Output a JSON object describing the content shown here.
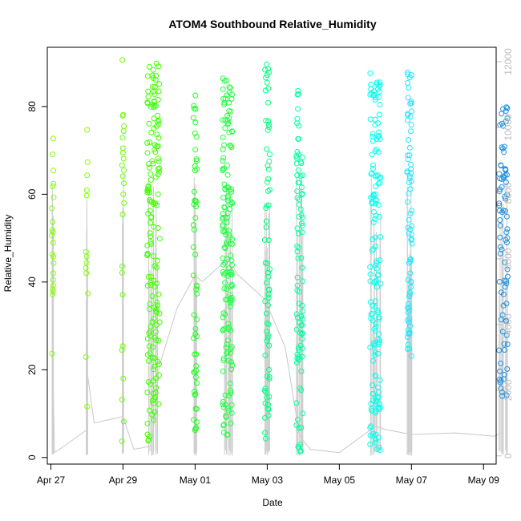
{
  "chart_data": {
    "type": "scatter",
    "title": "ATOM4 Southbound Relative_Humidity",
    "xlabel": "Date",
    "ylabel": "Relative_Humidity",
    "x_unit": "days since Apr 27",
    "xlim": [
      -0.1,
      12.35
    ],
    "ylim": [
      -1.5,
      93.5
    ],
    "y2lim": [
      -250,
      12440
    ],
    "grid": false,
    "legend": "none",
    "x_ticks": [
      {
        "value": 0,
        "label": "Apr 27"
      },
      {
        "value": 2,
        "label": "Apr 29"
      },
      {
        "value": 4,
        "label": "May 01"
      },
      {
        "value": 6,
        "label": "May 03"
      },
      {
        "value": 8,
        "label": "May 05"
      },
      {
        "value": 10,
        "label": "May 07"
      },
      {
        "value": 12,
        "label": "May 09"
      }
    ],
    "y_ticks": [
      0,
      20,
      40,
      60,
      80
    ],
    "y2_ticks": [
      0,
      2000,
      4000,
      6000,
      8000,
      10000,
      12000
    ],
    "clusters": [
      {
        "x": 0.05,
        "color": "#80ff00",
        "points": [
          23.7,
          37.1,
          37.8,
          38.4,
          39.2,
          40.5,
          42.0,
          44.3,
          45.8,
          46.3,
          49.0,
          50.6,
          51.4,
          51.9,
          53.7,
          56.8,
          59.3,
          61.8,
          62.4,
          65.4,
          69.1,
          72.7
        ]
      },
      {
        "x": 1.0,
        "color": "#80ff00",
        "points": [
          11.6,
          22.9,
          37.4,
          42.0,
          43.2,
          44.4,
          45.8,
          46.9,
          59.7,
          60.9,
          64.3,
          67.3,
          74.7
        ]
      },
      {
        "x": 2.0,
        "color": "#6aff00",
        "points": [
          3.7,
          8.2,
          13.2,
          18.0,
          24.5,
          25.4,
          37.1,
          42.1,
          43.6,
          55.4,
          58.0,
          60.0,
          62.5,
          64.1,
          65.5,
          66.6,
          68.1,
          69.5,
          70.5,
          72.9,
          74.4,
          75.5,
          77.9,
          78.1,
          90.6
        ]
      },
      {
        "x": 2.85,
        "color": "#40ff00",
        "spread": 0.18,
        "count": 160,
        "range": [
          3,
          90
        ]
      },
      {
        "x": 4.0,
        "color": "#20ff20",
        "spread": 0.05,
        "count": 55,
        "range": [
          5,
          86
        ]
      },
      {
        "x": 4.9,
        "color": "#20ff40",
        "spread": 0.14,
        "count": 160,
        "range": [
          5,
          89
        ]
      },
      {
        "x": 6.0,
        "color": "#00ff80",
        "spread": 0.07,
        "count": 70,
        "range": [
          1.5,
          90
        ]
      },
      {
        "x": 6.9,
        "color": "#00ffa0",
        "spread": 0.09,
        "count": 90,
        "range": [
          1,
          84
        ]
      },
      {
        "x": 9.0,
        "color": "#00ffee",
        "spread": 0.15,
        "count": 150,
        "range": [
          1.5,
          88
        ]
      },
      {
        "x": 9.95,
        "color": "#20e6ff",
        "spread": 0.07,
        "count": 75,
        "range": [
          23,
          88
        ]
      },
      {
        "x": 12.55,
        "color": "#2090e0",
        "spread": 0.12,
        "count": 85,
        "range": [
          14,
          80
        ]
      }
    ],
    "elevation_trace": [
      [
        0.0,
        3000
      ],
      [
        0.05,
        3000
      ],
      [
        0.1,
        100
      ],
      [
        0.5,
        400
      ],
      [
        1.0,
        800
      ],
      [
        1.0,
        2600
      ],
      [
        1.2,
        1000
      ],
      [
        2.0,
        1200
      ],
      [
        2.3,
        200
      ],
      [
        2.8,
        300
      ],
      [
        3.0,
        2700
      ],
      [
        3.5,
        4500
      ],
      [
        4.0,
        5500
      ],
      [
        4.2,
        5300
      ],
      [
        4.9,
        6000
      ],
      [
        5.2,
        5500
      ],
      [
        5.9,
        4800
      ],
      [
        6.0,
        4600
      ],
      [
        6.5,
        3300
      ],
      [
        6.9,
        600
      ],
      [
        7.2,
        200
      ],
      [
        8.0,
        100
      ],
      [
        9.0,
        900
      ],
      [
        9.3,
        800
      ],
      [
        10.0,
        650
      ],
      [
        11.2,
        700
      ],
      [
        12.3,
        600
      ],
      [
        12.5,
        700
      ]
    ]
  }
}
